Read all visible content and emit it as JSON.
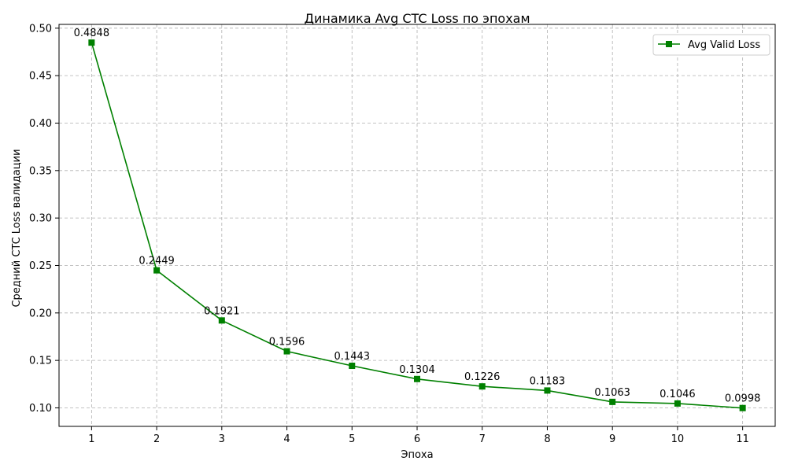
{
  "chart_data": {
    "type": "line",
    "title": "Динамика Avg CTC Loss по эпохам",
    "xlabel": "Эпоха",
    "ylabel": "Средний CTC Loss валидации",
    "x": [
      1,
      2,
      3,
      4,
      5,
      6,
      7,
      8,
      9,
      10,
      11
    ],
    "x_tick_labels": [
      "1",
      "2",
      "3",
      "4",
      "5",
      "6",
      "7",
      "8",
      "9",
      "10",
      "11"
    ],
    "y_ticks": [
      0.1,
      0.15,
      0.2,
      0.25,
      0.3,
      0.35,
      0.4,
      0.45,
      0.5
    ],
    "y_tick_labels": [
      "0.10",
      "0.15",
      "0.20",
      "0.25",
      "0.30",
      "0.35",
      "0.40",
      "0.45",
      "0.50"
    ],
    "xlim": [
      0.5,
      11.5
    ],
    "ylim": [
      0.0805,
      0.504
    ],
    "grid": true,
    "legend_position": "top-right",
    "series": [
      {
        "name": "Avg Valid Loss",
        "color": "#008000",
        "marker": "square",
        "values": [
          0.4848,
          0.2449,
          0.1921,
          0.1596,
          0.1443,
          0.1304,
          0.1226,
          0.1183,
          0.1063,
          0.1046,
          0.0998
        ],
        "data_labels": [
          "0.4848",
          "0.2449",
          "0.1921",
          "0.1596",
          "0.1443",
          "0.1304",
          "0.1226",
          "0.1183",
          "0.1063",
          "0.1046",
          "0.0998"
        ]
      }
    ]
  }
}
